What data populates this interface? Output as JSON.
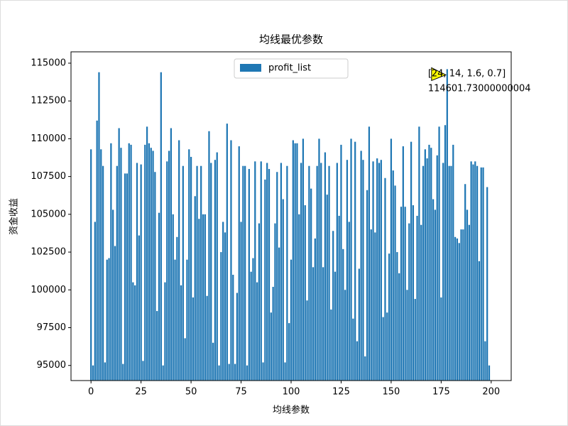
{
  "chart_data": {
    "type": "bar",
    "title": "均线最优参数",
    "xlabel": "均线参数",
    "ylabel": "资金收益",
    "legend": {
      "label": "profit_list",
      "loc": "upper center"
    },
    "color": "#1f77b4",
    "annotation": {
      "lines": [
        "[24, 14, 1.6, 0.7]",
        "114601.73000000004"
      ],
      "x": 178,
      "color": "#ffff00"
    },
    "xlim": [
      -10,
      210
    ],
    "xticks": [
      0,
      25,
      50,
      75,
      100,
      125,
      150,
      175,
      200
    ],
    "ylim": [
      94000,
      115750
    ],
    "yticks": [
      95000,
      97500,
      100000,
      102500,
      105000,
      107500,
      110000,
      112500,
      115000
    ],
    "values": [
      109300,
      95000,
      104500,
      111200,
      114400,
      109300,
      108200,
      95200,
      102000,
      102100,
      109700,
      105300,
      102900,
      108200,
      110700,
      109400,
      95100,
      107700,
      107700,
      109700,
      109600,
      100500,
      100300,
      108400,
      103600,
      108300,
      95300,
      109600,
      110800,
      109700,
      109400,
      109200,
      107800,
      98600,
      105100,
      114400,
      95000,
      100500,
      108500,
      109200,
      110700,
      105000,
      102000,
      103500,
      109900,
      100300,
      108200,
      96800,
      102000,
      109300,
      108800,
      99500,
      106200,
      108200,
      104700,
      108200,
      105000,
      105000,
      99600,
      110500,
      108400,
      96500,
      108600,
      109100,
      95000,
      102500,
      104500,
      103800,
      111000,
      95100,
      109900,
      101000,
      95100,
      99800,
      109500,
      104500,
      108200,
      108200,
      95000,
      108000,
      101200,
      102100,
      108500,
      100500,
      104400,
      108500,
      95200,
      107300,
      108400,
      108000,
      98500,
      100200,
      104400,
      107800,
      102800,
      108400,
      106000,
      95200,
      108200,
      97800,
      102000,
      109900,
      109700,
      109700,
      105000,
      108400,
      110000,
      105600,
      99300,
      108200,
      106700,
      101500,
      103400,
      108200,
      110000,
      108400,
      101500,
      109100,
      106300,
      108200,
      98700,
      103900,
      101200,
      108400,
      104900,
      109600,
      102700,
      100000,
      108600,
      104500,
      110000,
      98100,
      109800,
      96600,
      101400,
      109200,
      108600,
      95600,
      106600,
      110800,
      104000,
      108500,
      103800,
      108700,
      108400,
      108600,
      98200,
      107400,
      98500,
      102400,
      110000,
      107900,
      106900,
      102500,
      101100,
      105500,
      109500,
      105500,
      100000,
      104400,
      109800,
      105600,
      99400,
      104900,
      110800,
      104300,
      108200,
      109300,
      108700,
      109600,
      109400,
      106000,
      105300,
      108900,
      110800,
      99500,
      108400,
      110900,
      114601.73000000004,
      108200,
      108200,
      109600,
      103500,
      103400,
      103100,
      104000,
      104000,
      107000,
      105300,
      104300,
      108500,
      108300,
      108500,
      108200,
      101900,
      108100,
      108100,
      96600,
      106800,
      95000
    ]
  }
}
